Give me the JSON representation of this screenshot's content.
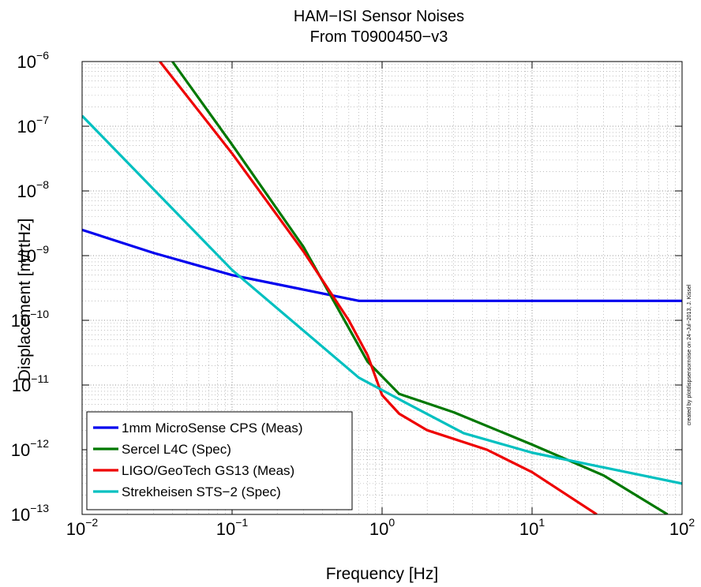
{
  "chart_data": {
    "type": "line",
    "title": "HAM−ISI Sensor Noises",
    "subtitle": "From T0900450−v3",
    "xlabel": "Frequency [Hz]",
    "ylabel": "Displacement [m/rtHz]",
    "x_scale": "log",
    "y_scale": "log",
    "xlim": [
      0.01,
      100
    ],
    "ylim": [
      1e-13,
      1e-06
    ],
    "grid": true,
    "legend_position": "bottom-left",
    "x_ticks": [
      {
        "value": 0.01,
        "base": "10",
        "exp": "−2"
      },
      {
        "value": 0.1,
        "base": "10",
        "exp": "−1"
      },
      {
        "value": 1,
        "base": "10",
        "exp": "0"
      },
      {
        "value": 10,
        "base": "10",
        "exp": "1"
      },
      {
        "value": 100,
        "base": "10",
        "exp": "2"
      }
    ],
    "y_ticks": [
      {
        "value": 1e-06,
        "base": "10",
        "exp": "−6"
      },
      {
        "value": 1e-07,
        "base": "10",
        "exp": "−7"
      },
      {
        "value": 1e-08,
        "base": "10",
        "exp": "−8"
      },
      {
        "value": 1e-09,
        "base": "10",
        "exp": "−9"
      },
      {
        "value": 1e-10,
        "base": "10",
        "exp": "−10"
      },
      {
        "value": 1e-11,
        "base": "10",
        "exp": "−11"
      },
      {
        "value": 1e-12,
        "base": "10",
        "exp": "−12"
      },
      {
        "value": 1e-13,
        "base": "10",
        "exp": "−13"
      }
    ],
    "series": [
      {
        "name": "1mm MicroSense CPS (Meas)",
        "color": "#0000ee",
        "x": [
          0.01,
          0.03,
          0.1,
          0.7,
          1,
          10,
          100
        ],
        "y": [
          2.5e-09,
          1.1e-09,
          5e-10,
          2e-10,
          2e-10,
          2e-10,
          2e-10
        ]
      },
      {
        "name": "Sercel L4C (Spec)",
        "color": "#007800",
        "x": [
          0.04,
          0.1,
          0.3,
          0.8,
          1.3,
          3,
          10,
          30,
          80
        ],
        "y": [
          1e-06,
          5.2e-08,
          1.35e-09,
          2.3e-11,
          7.3e-12,
          3.8e-12,
          1.2e-12,
          4e-13,
          1e-13
        ]
      },
      {
        "name": "LIGO/GeoTech GS13 (Meas)",
        "color": "#ee0000",
        "x": [
          0.033,
          0.1,
          0.3,
          0.6,
          0.8,
          1,
          1.3,
          2,
          5,
          10,
          27
        ],
        "y": [
          1e-06,
          3.8e-08,
          1.15e-09,
          1e-10,
          2.9e-11,
          7e-12,
          3.6e-12,
          2e-12,
          1e-12,
          4.5e-13,
          1e-13
        ]
      },
      {
        "name": "Strekheisen STS−2 (Spec)",
        "color": "#00c0c0",
        "x": [
          0.01,
          0.1,
          0.7,
          1.4,
          3.5,
          10,
          100
        ],
        "y": [
          1.45e-07,
          6e-10,
          1.3e-11,
          5.5e-12,
          1.8e-12,
          9e-13,
          3e-13
        ]
      }
    ],
    "annotation": "created by plotdispsensornoise on 24−Jul−2013, J. Kissel"
  }
}
